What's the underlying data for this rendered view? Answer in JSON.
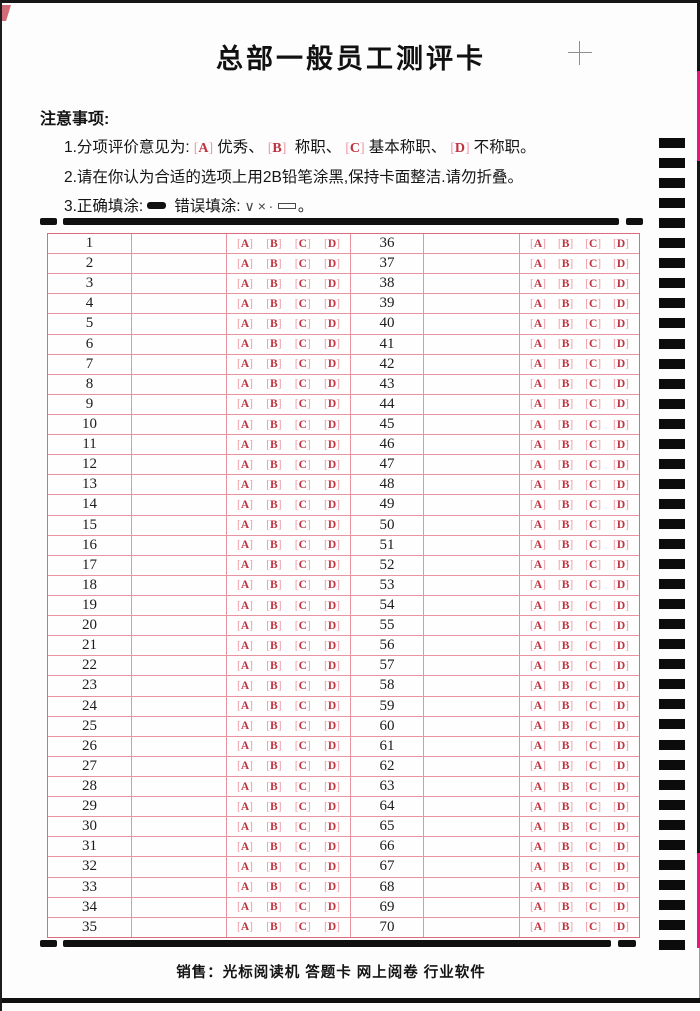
{
  "page": {
    "title": "总部一般员工测评卡",
    "footer": "销售：光标阅读机 答题卡 网上阅卷 行业软件"
  },
  "notice": {
    "heading": "注意事项:",
    "line1_parts": [
      {
        "text": "1.分项评价意见为:",
        "style": "plain"
      },
      {
        "text": "A",
        "style": "opt"
      },
      {
        "text": "优秀、",
        "style": "plain"
      },
      {
        "text": "B",
        "style": "opt"
      },
      {
        "text": " 称职、",
        "style": "plain"
      },
      {
        "text": "C",
        "style": "opt"
      },
      {
        "text": "基本称职、",
        "style": "plain"
      },
      {
        "text": "D",
        "style": "opt"
      },
      {
        "text": "不称职。",
        "style": "plain"
      }
    ],
    "line2": "2.请在你认为合适的选项上用2B铅笔涂黑,保持卡面整洁.请勿折叠。",
    "line3": {
      "prefix": "3.正确填涂:",
      "middle": "错误填涂:",
      "wrong_glyphs": "∨×∙",
      "suffix": "。"
    }
  },
  "table": {
    "options": [
      "A",
      "B",
      "C",
      "D"
    ],
    "rows": [
      {
        "left": "1",
        "right": "36"
      },
      {
        "left": "2",
        "right": "37"
      },
      {
        "left": "3",
        "right": "38"
      },
      {
        "left": "4",
        "right": "39"
      },
      {
        "left": "5",
        "right": "40"
      },
      {
        "left": "6",
        "right": "41"
      },
      {
        "left": "7",
        "right": "42"
      },
      {
        "left": "8",
        "right": "43"
      },
      {
        "left": "9",
        "right": "44"
      },
      {
        "left": "10",
        "right": "45"
      },
      {
        "left": "11",
        "right": "46"
      },
      {
        "left": "12",
        "right": "47"
      },
      {
        "left": "13",
        "right": "48"
      },
      {
        "left": "14",
        "right": "49"
      },
      {
        "left": "15",
        "right": "50"
      },
      {
        "left": "16",
        "right": "51"
      },
      {
        "left": "17",
        "right": "52"
      },
      {
        "left": "18",
        "right": "53"
      },
      {
        "left": "19",
        "right": "54"
      },
      {
        "left": "20",
        "right": "55"
      },
      {
        "left": "21",
        "right": "56"
      },
      {
        "left": "22",
        "right": "57"
      },
      {
        "left": "23",
        "right": "58"
      },
      {
        "left": "24",
        "right": "59"
      },
      {
        "left": "25",
        "right": "60"
      },
      {
        "left": "26",
        "right": "61"
      },
      {
        "left": "27",
        "right": "62"
      },
      {
        "left": "28",
        "right": "63"
      },
      {
        "left": "29",
        "right": "64"
      },
      {
        "left": "30",
        "right": "65"
      },
      {
        "left": "31",
        "right": "66"
      },
      {
        "left": "32",
        "right": "67"
      },
      {
        "left": "33",
        "right": "68"
      },
      {
        "left": "34",
        "right": "69"
      },
      {
        "left": "35",
        "right": "70"
      }
    ]
  },
  "timing_track": {
    "count": 41
  },
  "colors": {
    "line": "#e893a0",
    "border": "#dd6b7b",
    "letter": "#c0323f",
    "bracket": "#ee9aa5",
    "edge-pink": "#e5187e"
  }
}
